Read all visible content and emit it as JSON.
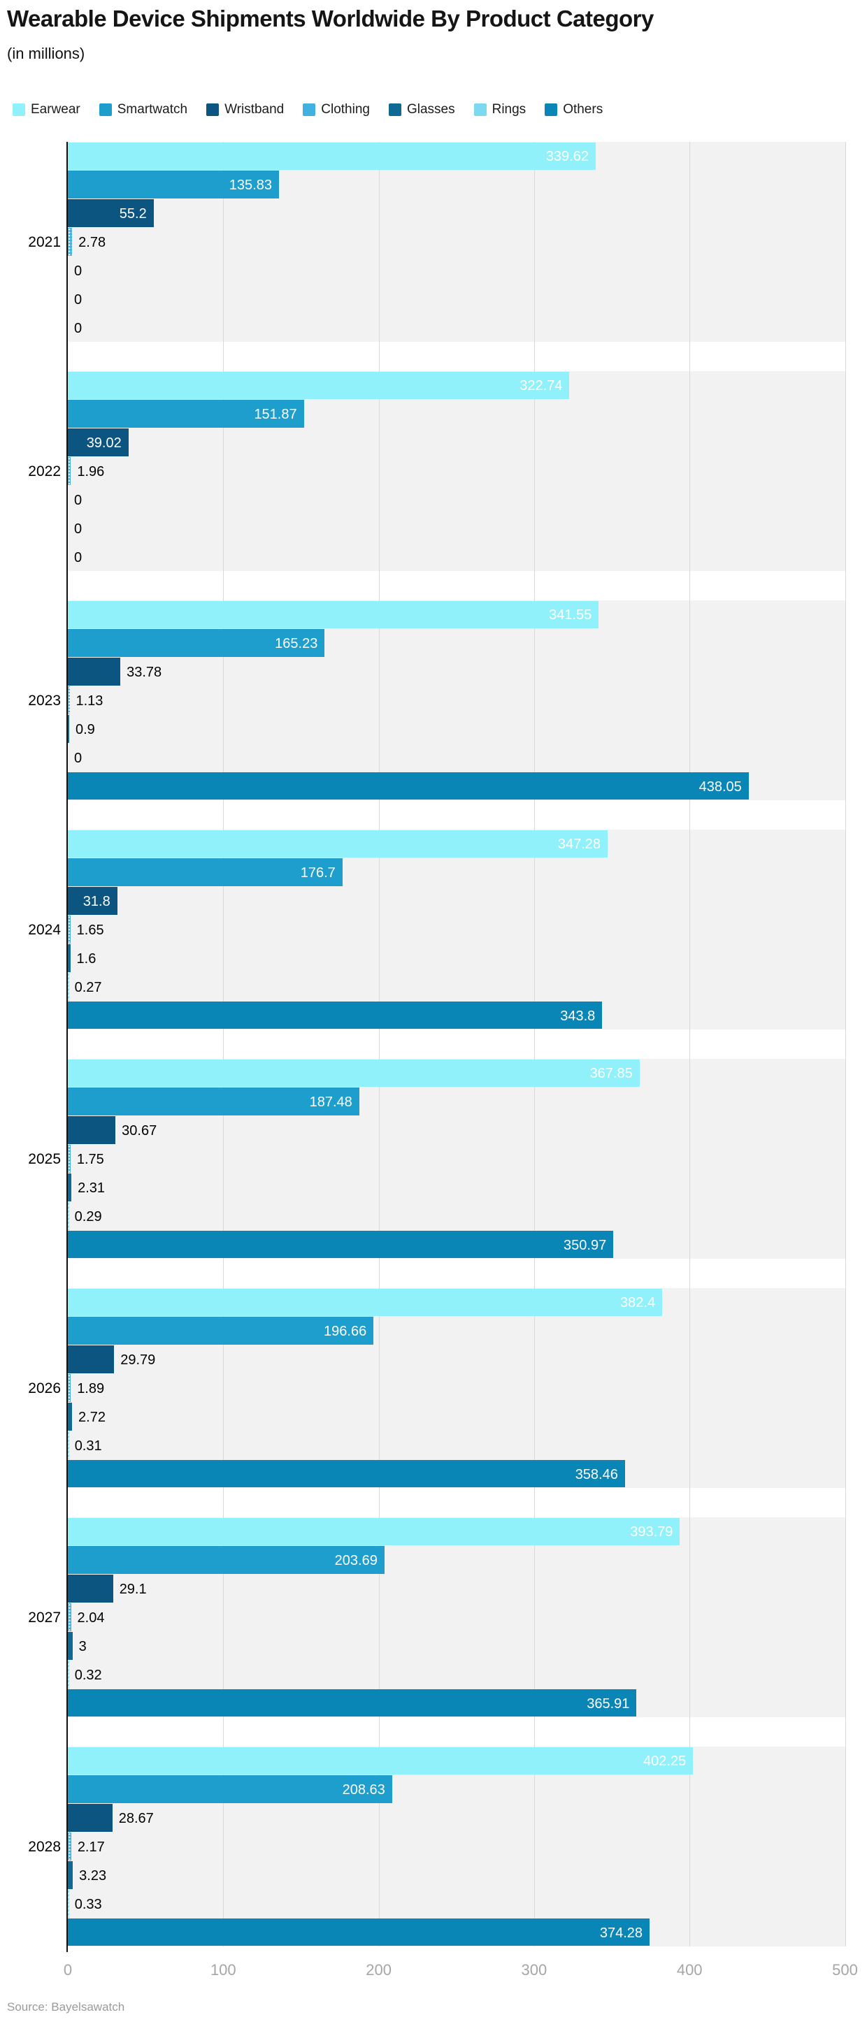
{
  "header": {
    "title": "Wearable Device Shipments Worldwide By Product Category",
    "subtitle": "(in millions)"
  },
  "footer": {
    "source": "Source: Bayelsawatch"
  },
  "colors": {
    "band_background": "#f2f2f2",
    "gridline": "#d9d9d9",
    "axis_line": "#101010",
    "axis_label": "#a6a6a6",
    "label_inside": "#ffffff",
    "label_outside": "#000000"
  },
  "chart_data": {
    "type": "bar",
    "orientation": "horizontal",
    "title": "Wearable Device Shipments Worldwide By Product Category",
    "subtitle": "(in millions)",
    "categories": [
      "2021",
      "2022",
      "2023",
      "2024",
      "2025",
      "2026",
      "2027",
      "2028"
    ],
    "series": [
      {
        "name": "Earwear",
        "color": "#90f1fa",
        "pattern": "none",
        "values": [
          339.62,
          322.74,
          341.55,
          347.28,
          367.85,
          382.4,
          393.79,
          402.25
        ]
      },
      {
        "name": "Smartwatch",
        "color": "#1e9ecd",
        "pattern": "none",
        "values": [
          135.83,
          151.87,
          165.23,
          176.7,
          187.48,
          196.66,
          203.69,
          208.63
        ]
      },
      {
        "name": "Wristband",
        "color": "#0b5580",
        "pattern": "none",
        "values": [
          55.2,
          39.02,
          33.78,
          31.8,
          30.67,
          29.79,
          29.1,
          28.67
        ]
      },
      {
        "name": "Clothing",
        "color": "#41b1e0",
        "pattern": "dots",
        "values": [
          2.78,
          1.96,
          1.13,
          1.65,
          1.75,
          1.89,
          2.04,
          2.17
        ]
      },
      {
        "name": "Glasses",
        "color": "#0e6a94",
        "pattern": "none",
        "values": [
          0,
          0,
          0.9,
          1.6,
          2.31,
          2.72,
          3,
          3.23
        ]
      },
      {
        "name": "Rings",
        "color": "#7cd9f0",
        "pattern": "zigzag",
        "values": [
          0,
          0,
          0,
          0.27,
          0.29,
          0.31,
          0.32,
          0.33
        ]
      },
      {
        "name": "Others",
        "color": "#0a86b6",
        "pattern": "none",
        "values": [
          0,
          0,
          438.05,
          343.8,
          350.97,
          358.46,
          365.91,
          374.28
        ]
      }
    ],
    "xlabel": "",
    "ylabel": "",
    "xlim": [
      0,
      500
    ],
    "x_ticks": [
      0,
      100,
      200,
      300,
      400,
      500
    ],
    "x_tick_labels": [
      "0",
      "100",
      "200",
      "300",
      "400",
      "500"
    ],
    "grid": true,
    "legend_position": "top",
    "data_labels": true
  }
}
